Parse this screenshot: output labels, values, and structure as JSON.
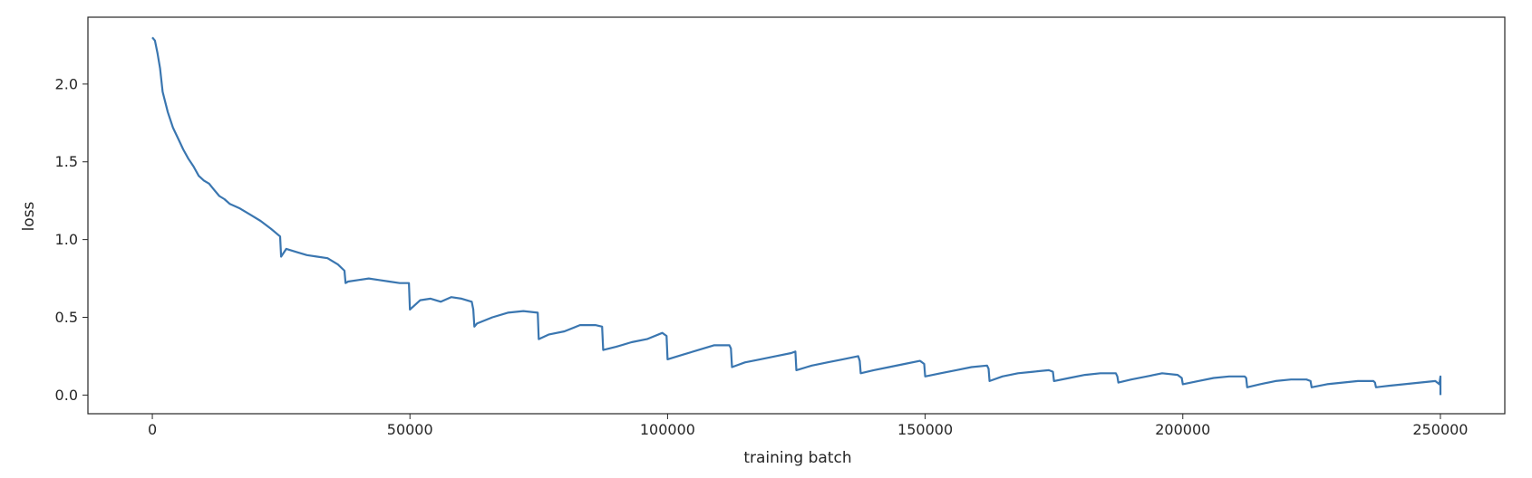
{
  "chart_data": {
    "type": "line",
    "title": "",
    "xlabel": "training batch",
    "ylabel": "loss",
    "xlim": [
      -12500,
      262500
    ],
    "ylim": [
      -0.12,
      2.43
    ],
    "xticks": [
      0,
      50000,
      100000,
      150000,
      200000,
      250000
    ],
    "yticks": [
      0.0,
      0.5,
      1.0,
      1.5,
      2.0
    ],
    "ytick_labels": [
      "0.0",
      "0.5",
      "1.0",
      "1.5",
      "2.0"
    ],
    "grid": false,
    "legend": "none",
    "line_color": "#3a76b0",
    "series": [
      {
        "x": [
          0,
          500,
          1000,
          1500,
          2000,
          3000,
          4000,
          5000,
          6000,
          7000,
          8000,
          9000,
          10000,
          11000,
          12000,
          13000,
          14000,
          15000,
          17000,
          19000,
          21000,
          23000,
          24800,
          25000,
          26000,
          28000,
          30000,
          32000,
          34000,
          36000,
          37300,
          37500,
          38000,
          40000,
          42000,
          44000,
          46000,
          48000,
          49800,
          50000,
          52000,
          54000,
          56000,
          58000,
          60000,
          62000,
          62300,
          62500,
          63000,
          66000,
          69000,
          72000,
          74800,
          75000,
          77000,
          80000,
          83000,
          86000,
          87300,
          87500,
          90000,
          93000,
          96000,
          99000,
          99800,
          100000,
          103000,
          106000,
          109000,
          112000,
          112300,
          112500,
          115000,
          118000,
          121000,
          124000,
          124800,
          125000,
          128000,
          131000,
          134000,
          137000,
          137300,
          137500,
          140000,
          143000,
          146000,
          149000,
          149800,
          150000,
          153000,
          156000,
          159000,
          162000,
          162300,
          162500,
          165000,
          168000,
          171000,
          174000,
          174800,
          175000,
          178000,
          181000,
          184000,
          187000,
          187300,
          187500,
          190000,
          193000,
          196000,
          199000,
          199800,
          200000,
          203000,
          206000,
          209000,
          212000,
          212300,
          212500,
          215000,
          218000,
          221000,
          224000,
          224800,
          225000,
          228000,
          231000,
          234000,
          237000,
          237300,
          237500,
          240000,
          243000,
          246000,
          249000,
          249800,
          250000,
          250000
        ],
        "y": [
          2.3,
          2.28,
          2.2,
          2.1,
          1.95,
          1.82,
          1.72,
          1.65,
          1.58,
          1.52,
          1.47,
          1.41,
          1.38,
          1.36,
          1.32,
          1.28,
          1.26,
          1.23,
          1.2,
          1.16,
          1.12,
          1.07,
          1.02,
          0.89,
          0.94,
          0.92,
          0.9,
          0.89,
          0.88,
          0.84,
          0.8,
          0.72,
          0.73,
          0.74,
          0.75,
          0.74,
          0.73,
          0.72,
          0.72,
          0.55,
          0.61,
          0.62,
          0.6,
          0.63,
          0.62,
          0.6,
          0.55,
          0.44,
          0.46,
          0.5,
          0.53,
          0.54,
          0.53,
          0.36,
          0.39,
          0.41,
          0.45,
          0.45,
          0.44,
          0.29,
          0.31,
          0.34,
          0.36,
          0.4,
          0.38,
          0.23,
          0.26,
          0.29,
          0.32,
          0.32,
          0.3,
          0.18,
          0.21,
          0.23,
          0.25,
          0.27,
          0.28,
          0.16,
          0.19,
          0.21,
          0.23,
          0.25,
          0.22,
          0.14,
          0.16,
          0.18,
          0.2,
          0.22,
          0.2,
          0.12,
          0.14,
          0.16,
          0.18,
          0.19,
          0.17,
          0.09,
          0.12,
          0.14,
          0.15,
          0.16,
          0.15,
          0.09,
          0.11,
          0.13,
          0.14,
          0.14,
          0.12,
          0.08,
          0.1,
          0.12,
          0.14,
          0.13,
          0.11,
          0.07,
          0.09,
          0.11,
          0.12,
          0.12,
          0.11,
          0.05,
          0.07,
          0.09,
          0.1,
          0.1,
          0.09,
          0.05,
          0.07,
          0.08,
          0.09,
          0.09,
          0.08,
          0.05,
          0.06,
          0.07,
          0.08,
          0.09,
          0.07,
          0.12,
          0.0
        ]
      }
    ]
  }
}
